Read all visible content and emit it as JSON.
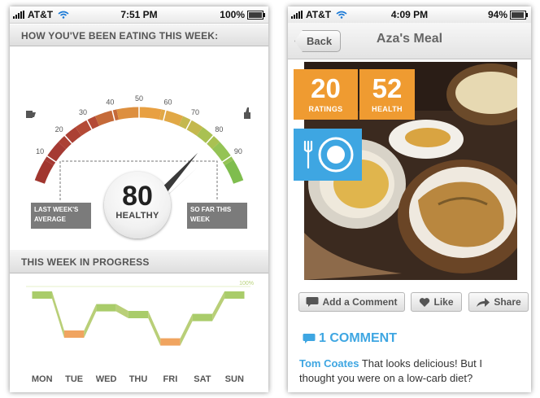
{
  "left_screen": {
    "status": {
      "carrier": "AT&T",
      "time": "7:51 PM",
      "battery": "100%"
    },
    "header_eating": "HOW YOU'VE BEEN EATING THIS WEEK:",
    "gauge": {
      "ticks": [
        "10",
        "20",
        "30",
        "40",
        "50",
        "60",
        "70",
        "80",
        "90"
      ],
      "value": 80,
      "last_week_label_line1": "LAST WEEK'S",
      "last_week_label_line2": "AVERAGE",
      "so_far_label_line1": "SO FAR THIS",
      "so_far_label_line2": "WEEK",
      "score_value": "80",
      "score_label": "HEALTHY",
      "colors": {
        "red": "#a53a33",
        "orange": "#e8a042",
        "green": "#8cc256"
      }
    },
    "header_progress": "THIS WEEK IN PROGRESS",
    "progress": {
      "hundred_label": "100%",
      "days": [
        "MON",
        "TUE",
        "WED",
        "THU",
        "FRI",
        "SAT",
        "SUN"
      ],
      "levels": [
        0.95,
        0.55,
        0.82,
        0.75,
        0.47,
        0.72,
        0.95
      ]
    }
  },
  "right_screen": {
    "status": {
      "carrier": "AT&T",
      "time": "4:09 PM",
      "battery": "94%"
    },
    "back_label": "Back",
    "title": "Aza's Meal",
    "ratings_value": "20",
    "ratings_label": "RATINGS",
    "health_value": "52",
    "health_label": "HEALTH",
    "actions": {
      "comment": "Add a Comment",
      "like": "Like",
      "share": "Share"
    },
    "comments_count": "1 COMMENT",
    "comment": {
      "author": "Tom Coates",
      "text": "That looks delicious! But I thought you were on a low-carb diet?"
    },
    "icons": {
      "plate": "plate-icon",
      "comment": "speech-bubble-icon",
      "like": "heart-icon",
      "share": "share-arrow-icon"
    }
  }
}
